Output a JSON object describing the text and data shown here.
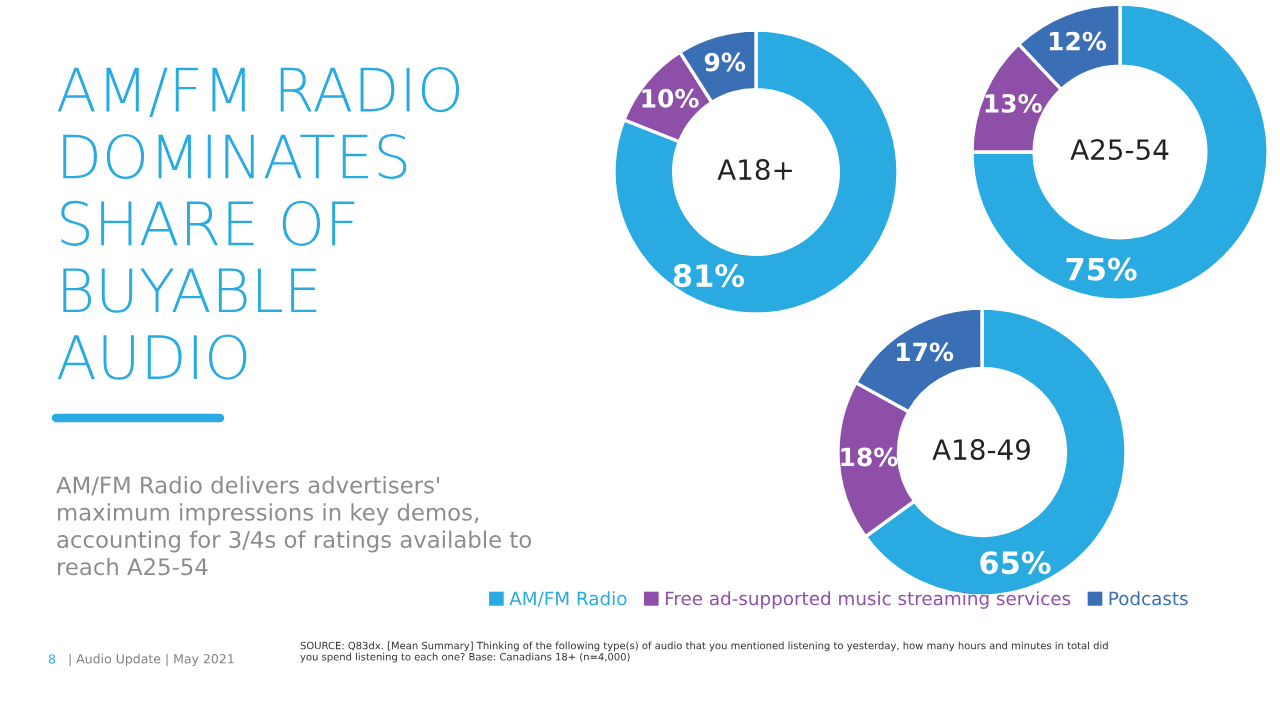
{
  "chart_data": [
    {
      "type": "other",
      "title": "AM/FM RADIO\nDOMINATES\nSHARE OF\nBUYABLE\nAUDIO",
      "subtitle": "AM/FM Radio delivers advertisers'\nmaximum impressions in key demos,\naccounting for 3/4s of ratings available to\nreach A25-54",
      "annotations": [
        "8",
        "| Audio Update | May 2021",
        "SOURCE: Q83dx. [Mean Summary] Thinking of the following type(s) of audio that you mentioned listening to yesterday, how many hours and minutes in total did\nyou spend listening to each one? Base: Canadians 18+ (n=4,000)"
      ]
    },
    {
      "type": "donut",
      "title": "A18+",
      "categories": [
        null,
        null,
        null
      ],
      "values": [
        81,
        10,
        9
      ],
      "value_labels": [
        "81%",
        "10%",
        "9%"
      ],
      "colors": [
        "#29abe2",
        "#8e4fa8",
        "#3a6fb5"
      ]
    },
    {
      "type": "donut",
      "title": "A25-54",
      "categories": [
        null,
        null,
        null
      ],
      "values": [
        75,
        13,
        12
      ],
      "value_labels": [
        "75%",
        "13%",
        "12%"
      ],
      "colors": [
        "#29abe2",
        "#8e4fa8",
        "#3a6fb5"
      ]
    },
    {
      "type": "donut",
      "title": "A18-49",
      "categories": [
        "AM/FM Radio",
        "Free ad-supported music streaming services",
        "Podcasts"
      ],
      "values": [
        65,
        18,
        17
      ],
      "value_labels": [
        "65%",
        "18%",
        "17%"
      ],
      "colors": [
        "#29abe2",
        "#8e4fa8",
        "#3a6fb5"
      ],
      "legend": "bottom"
    }
  ]
}
